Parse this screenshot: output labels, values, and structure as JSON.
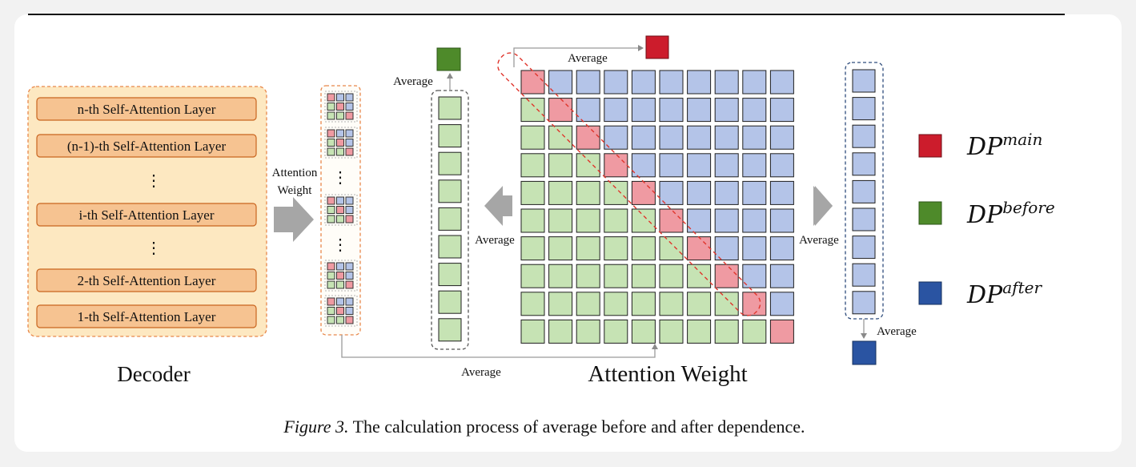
{
  "decoder": {
    "title": "Decoder",
    "layers": [
      "n-th Self-Attention Layer",
      "(n-1)-th Self-Attention Layer",
      "i-th Self-Attention Layer",
      "2-th Self-Attention Layer",
      "1-th Self-Attention Layer"
    ],
    "dots": "⋮"
  },
  "arrow_label": {
    "line1": "Attention",
    "line2": "Weight"
  },
  "labels": {
    "average_top_left": "Average",
    "average_top_main": "Average",
    "average_left": "Average",
    "average_right": "Average",
    "average_bottom": "Average",
    "average_after": "Average"
  },
  "matrix": {
    "title": "Attention Weight",
    "size": 10
  },
  "legend": [
    {
      "base": "DP",
      "sup": "main",
      "color": "#cc1c2c"
    },
    {
      "base": "DP",
      "sup": "before",
      "color": "#4e8a2a"
    },
    {
      "base": "DP",
      "sup": "after",
      "color": "#2a54a2"
    }
  ],
  "colors": {
    "green_cell": "#c6e3b4",
    "blue_cell": "#b4c4e8",
    "pink_cell": "#ef9aa2",
    "decoder_bg": "#fde8c1",
    "layer_fill": "#f6c391",
    "red_dash": "#e0352c",
    "orange_dash": "#e8874a",
    "dark_dash": "#555555",
    "navy_dash": "#2e4c7c"
  },
  "caption": {
    "label": "Figure 3.",
    "text": " The calculation process of average before and after dependence."
  }
}
